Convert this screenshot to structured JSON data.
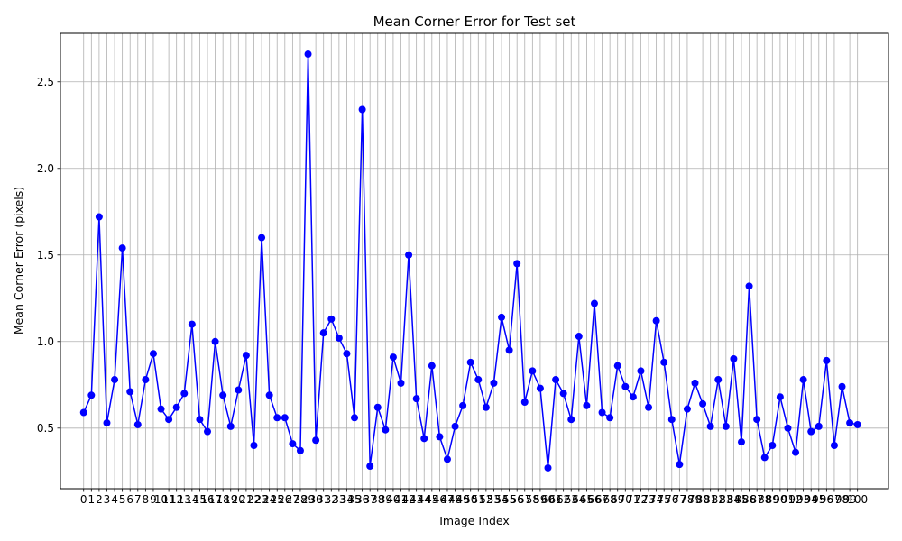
{
  "chart_data": {
    "type": "line",
    "title": "Mean Corner Error for Test set",
    "xlabel": "Image Index",
    "ylabel": "Mean Corner Error (pixels)",
    "x": [
      0,
      1,
      2,
      3,
      4,
      5,
      6,
      7,
      8,
      9,
      10,
      11,
      12,
      13,
      14,
      15,
      16,
      17,
      18,
      19,
      20,
      21,
      22,
      23,
      24,
      25,
      26,
      27,
      28,
      29,
      30,
      31,
      32,
      33,
      34,
      35,
      36,
      37,
      38,
      39,
      40,
      41,
      42,
      43,
      44,
      45,
      46,
      47,
      48,
      49,
      50,
      51,
      52,
      53,
      54,
      55,
      56,
      57,
      58,
      59,
      60,
      61,
      62,
      63,
      64,
      65,
      66,
      67,
      68,
      69,
      70,
      71,
      72,
      73,
      74,
      75,
      76,
      77,
      78,
      79,
      80,
      81,
      82,
      83,
      84,
      85,
      86,
      87,
      88,
      89,
      90,
      91,
      92,
      93,
      94,
      95,
      96,
      97,
      98,
      99,
      100
    ],
    "series": [
      {
        "values": [
          0.59,
          0.69,
          1.72,
          0.53,
          0.78,
          1.54,
          0.71,
          0.52,
          0.78,
          0.93,
          0.61,
          0.55,
          0.62,
          0.7,
          1.1,
          0.55,
          0.48,
          1.0,
          0.69,
          0.51,
          0.72,
          0.92,
          0.4,
          1.6,
          0.69,
          0.56,
          0.56,
          0.41,
          0.37,
          2.66,
          0.43,
          1.05,
          1.13,
          1.02,
          0.93,
          0.56,
          2.34,
          0.28,
          0.62,
          0.49,
          0.91,
          0.76,
          1.5,
          0.67,
          0.44,
          0.86,
          0.45,
          0.32,
          0.51,
          0.63,
          0.88,
          0.78,
          0.62,
          0.76,
          1.14,
          0.95,
          1.45,
          0.65,
          0.83,
          0.73,
          0.27,
          0.78,
          0.7,
          0.55,
          1.03,
          0.63,
          1.22,
          0.59,
          0.56,
          0.86,
          0.74,
          0.68,
          0.83,
          0.62,
          1.12,
          0.88,
          0.55,
          0.29,
          0.61,
          0.76,
          0.64,
          0.51,
          0.78,
          0.51,
          0.9,
          0.42,
          1.32,
          0.55,
          0.33,
          0.4,
          0.68,
          0.5,
          0.36,
          0.78,
          0.48,
          0.51,
          0.89,
          0.4,
          0.74,
          0.53,
          0.52
        ],
        "color": "#0000ff",
        "marker": "circle"
      }
    ],
    "yticks": [
      "0.5",
      "1.0",
      "1.5",
      "2.0",
      "2.5"
    ],
    "ylim": [
      0.15,
      2.78
    ],
    "xlim": [
      -3,
      104
    ],
    "grid": true
  }
}
